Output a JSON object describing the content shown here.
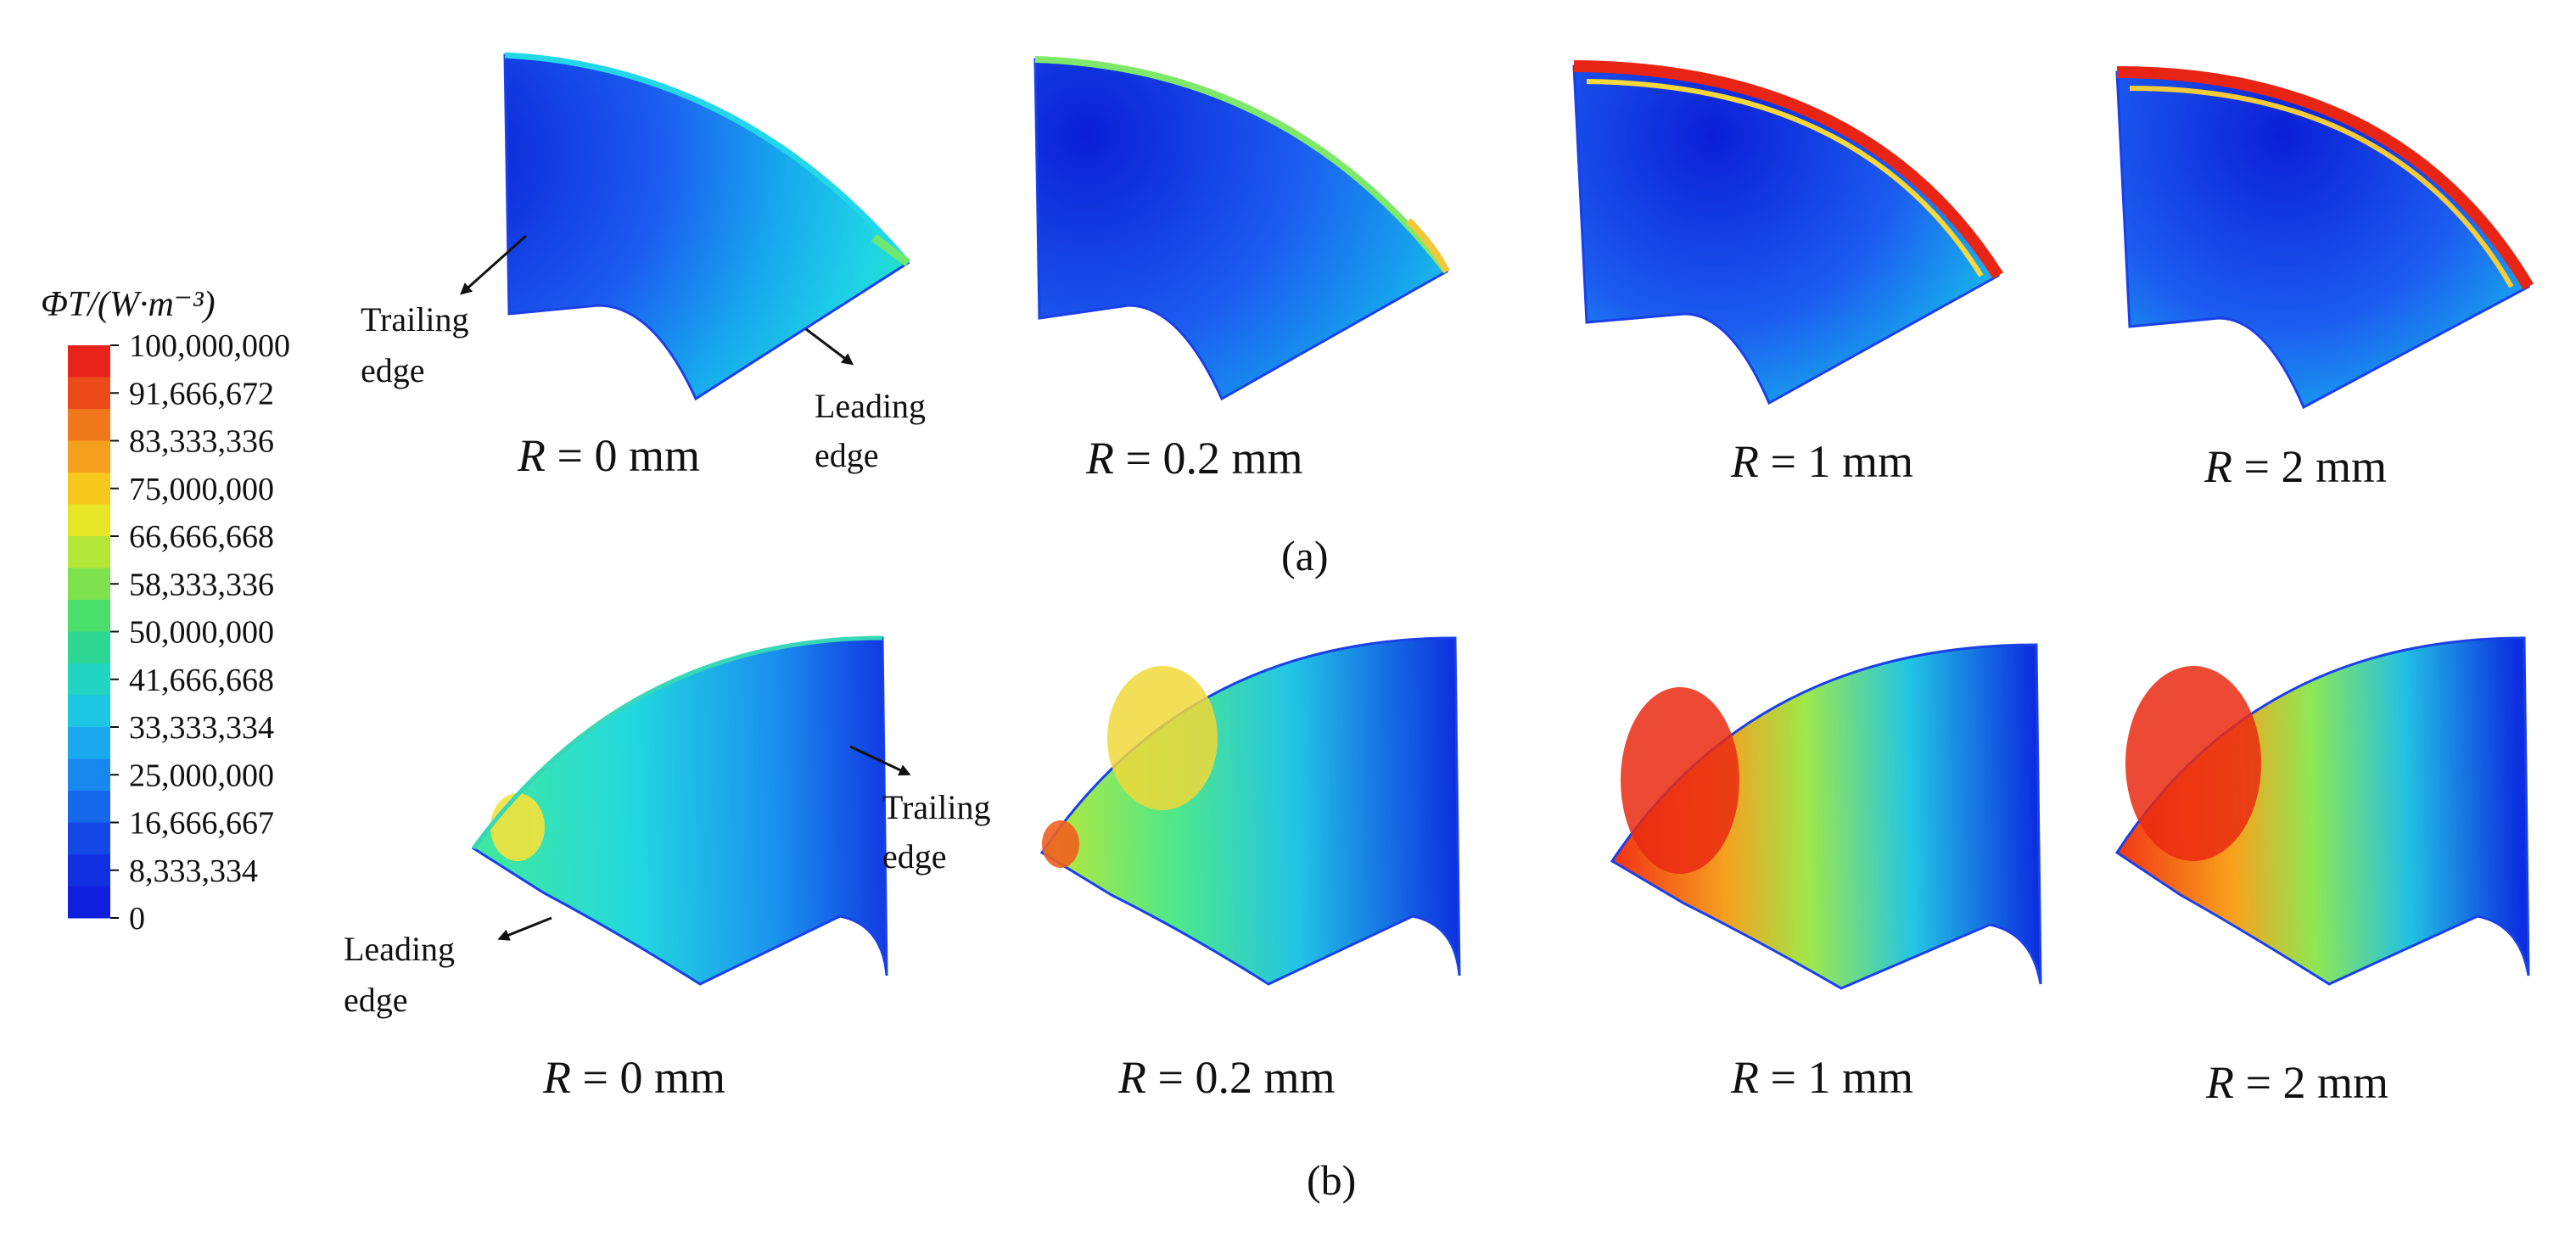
{
  "colorbar": {
    "title": "ΦT/(W·m⁻³)",
    "tick_labels": [
      "100,000,000",
      "91,666,672",
      "83,333,336",
      "75,000,000",
      "66,666,668",
      "58,333,336",
      "50,000,000",
      "41,666,668",
      "33,333,334",
      "25,000,000",
      "16,666,667",
      "8,333,334",
      "0"
    ],
    "colors": [
      "#e8241a",
      "#ec4a18",
      "#f0771a",
      "#f4a01c",
      "#f6c81e",
      "#e6e626",
      "#b4e638",
      "#7ee24e",
      "#4ade6a",
      "#2ed694",
      "#22d4c2",
      "#1ec6e4",
      "#1aa8ee",
      "#1888ee",
      "#1668ea",
      "#1448e6",
      "#1230e2",
      "#1020de"
    ]
  },
  "symbols": {
    "R": "R"
  },
  "panels_a": [
    {
      "label": " = 0 mm"
    },
    {
      "label": " = 0.2 mm"
    },
    {
      "label": " = 1 mm"
    },
    {
      "label": " = 2 mm"
    }
  ],
  "panels_b": [
    {
      "label": " = 0 mm"
    },
    {
      "label": " = 0.2 mm"
    },
    {
      "label": " = 1 mm"
    },
    {
      "label": " = 2 mm"
    }
  ],
  "annotations": {
    "a_trailing_1": "Trailing",
    "a_trailing_2": "edge",
    "a_leading_1": "Leading",
    "a_leading_2": "edge",
    "b_trailing_1": "Trailing",
    "b_trailing_2": "edge",
    "b_leading_1": "Leading",
    "b_leading_2": "edge"
  },
  "panel_labels": {
    "a": "(a)",
    "b": "(b)"
  }
}
